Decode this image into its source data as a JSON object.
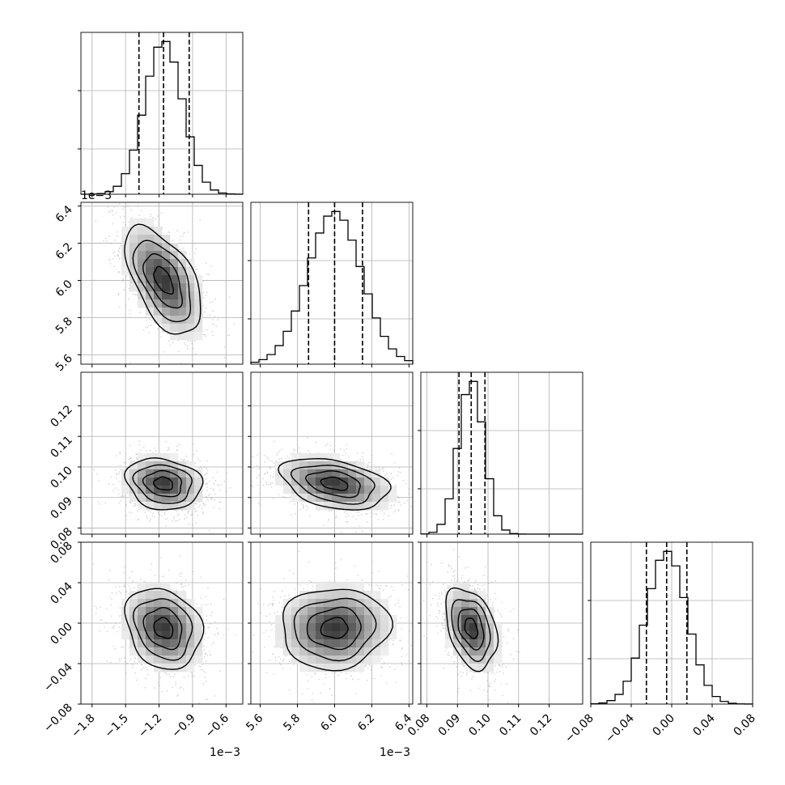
{
  "chart_data": {
    "type": "corner",
    "description_free": true,
    "params": [
      {
        "key": "p0",
        "range": [
          -1.9,
          -0.45
        ],
        "ticks": [
          -1.8,
          -1.5,
          -1.2,
          -0.9,
          -0.6
        ],
        "tick_labels": [
          "−1.8",
          "−1.5",
          "−1.2",
          "−0.9",
          "−0.6"
        ],
        "offset": "1e−3",
        "quantiles": [
          -1.38,
          -1.16,
          -0.93
        ],
        "mean": -1.16,
        "sd": 0.17
      },
      {
        "key": "p1",
        "range": [
          5.55,
          6.42
        ],
        "ticks": [
          5.6,
          5.8,
          6.0,
          6.2,
          6.4
        ],
        "tick_labels": [
          "5.6",
          "5.8",
          "6.0",
          "6.2",
          "6.4"
        ],
        "offset": "1e−3",
        "quantiles": [
          5.86,
          6.0,
          6.15
        ],
        "mean": 6.0,
        "sd": 0.145
      },
      {
        "key": "p2",
        "range": [
          0.078,
          0.131
        ],
        "ticks": [
          0.08,
          0.09,
          0.1,
          0.11,
          0.12
        ],
        "tick_labels": [
          "0.08",
          "0.09",
          "0.10",
          "0.11",
          "0.12"
        ],
        "offset": "",
        "quantiles": [
          0.0905,
          0.0945,
          0.099
        ],
        "mean": 0.0945,
        "sd": 0.0042
      },
      {
        "key": "p3",
        "range": [
          -0.08,
          0.08
        ],
        "ticks": [
          -0.08,
          -0.04,
          0.0,
          0.04,
          0.08
        ],
        "tick_labels": [
          "−0.08",
          "−0.04",
          "0.00",
          "0.04",
          "0.08"
        ],
        "offset": "",
        "quantiles": [
          -0.025,
          -0.005,
          0.015
        ],
        "mean": -0.005,
        "sd": 0.02
      }
    ],
    "correlations": [
      {
        "i": 1,
        "j": 0,
        "rho": -0.55
      },
      {
        "i": 2,
        "j": 0,
        "rho": -0.15
      },
      {
        "i": 2,
        "j": 1,
        "rho": -0.35
      },
      {
        "i": 3,
        "j": 0,
        "rho": -0.2
      },
      {
        "i": 3,
        "j": 1,
        "rho": 0.05
      },
      {
        "i": 3,
        "j": 2,
        "rho": -0.35
      }
    ],
    "histogram_bins": 20,
    "grid": true
  }
}
